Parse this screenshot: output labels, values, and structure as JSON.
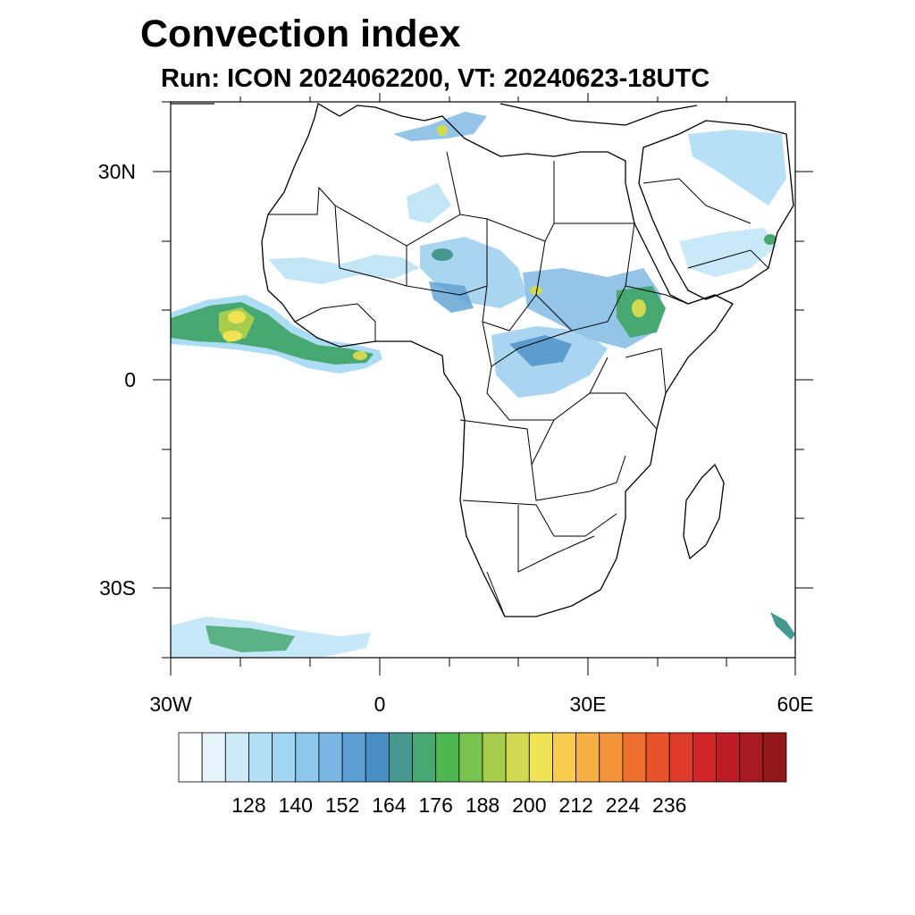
{
  "title": "Convection index",
  "subtitle": "Run: ICON 2024062200,  VT: 20240623-18UTC",
  "map": {
    "region": "Africa",
    "lon_range": [
      -30,
      60
    ],
    "lat_range": [
      -40,
      40
    ],
    "lat_ticks": [
      {
        "value": 30,
        "label": "30N"
      },
      {
        "value": 0,
        "label": "0"
      },
      {
        "value": -30,
        "label": "30S"
      }
    ],
    "lon_ticks": [
      {
        "value": -30,
        "label": "30W"
      },
      {
        "value": 0,
        "label": "0"
      },
      {
        "value": 30,
        "label": "30E"
      },
      {
        "value": 60,
        "label": "60E"
      }
    ]
  },
  "colorbar": {
    "colors": [
      "#ffffff",
      "#e6f4fb",
      "#cdeaf8",
      "#b4e0f5",
      "#9fd6f3",
      "#8cc7ec",
      "#79b6e3",
      "#5d9fd5",
      "#4a8ec6",
      "#45998e",
      "#48a872",
      "#4db852",
      "#78c24f",
      "#a8cc4e",
      "#d2da4f",
      "#f0e455",
      "#f7cc4f",
      "#f6b044",
      "#f5933a",
      "#ee6f30",
      "#e8532b",
      "#df3b2a",
      "#d12529",
      "#be1c26",
      "#a81a21",
      "#901818"
    ],
    "tick_labels": [
      "128",
      "140",
      "152",
      "164",
      "176",
      "188",
      "200",
      "212",
      "224",
      "236"
    ]
  }
}
